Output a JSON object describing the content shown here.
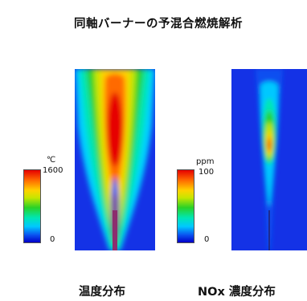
{
  "title": "同軸バーナーの予混合燃焼解析",
  "temperature": {
    "caption": "温度分布",
    "unit": "℃",
    "scale_max": "1600",
    "scale_min": "0"
  },
  "nox": {
    "caption": "NOx 濃度分布",
    "unit": "ppm",
    "scale_max": "100",
    "scale_min": "0"
  },
  "colors": {
    "background_field": "#1432e6",
    "colormap": [
      "#e60000",
      "#ff6a00",
      "#ffd200",
      "#c8e600",
      "#28d228",
      "#00e6b4",
      "#00c8ff",
      "#0a50f0",
      "#0000c8"
    ],
    "burner_nozzle": "#8c2d6e"
  }
}
